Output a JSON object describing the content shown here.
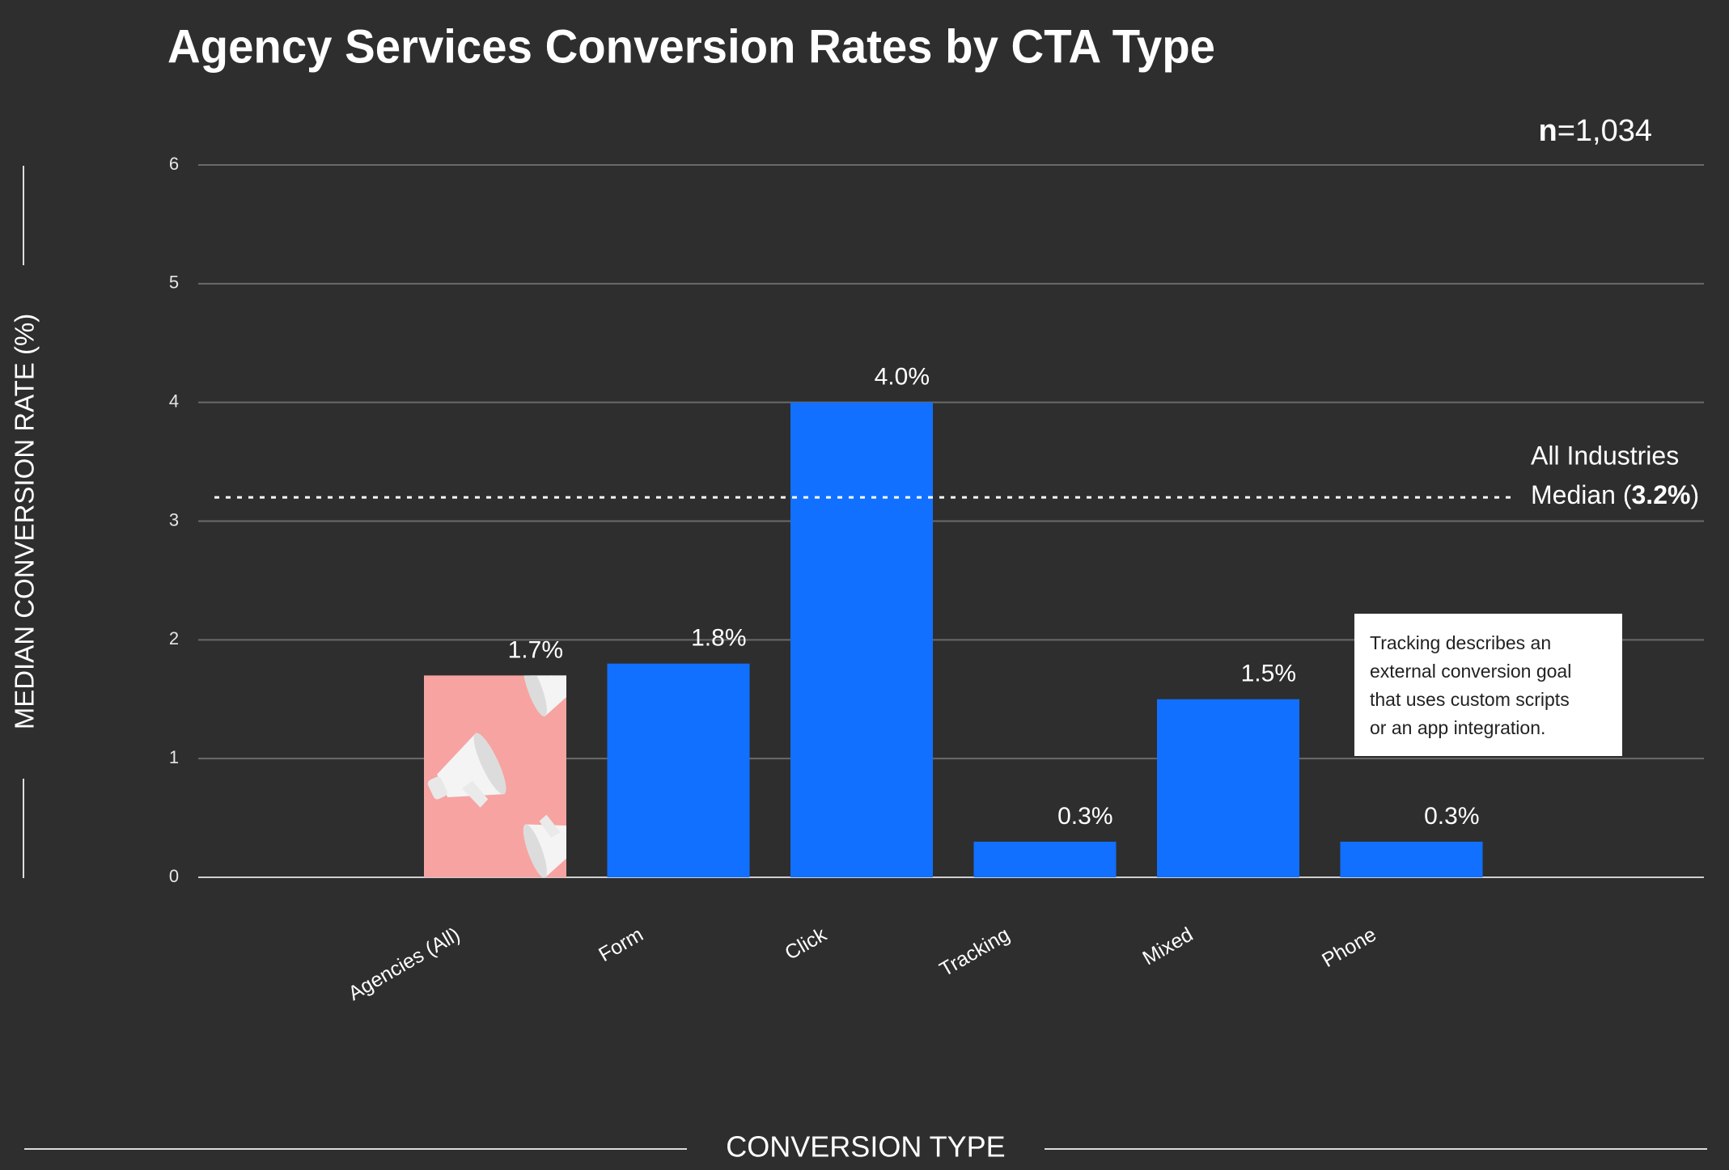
{
  "chart_data": {
    "type": "bar",
    "title": "Agency Services Conversion Rates by CTA Type",
    "x_label": "CONVERSION TYPE",
    "y_label": "MEDIAN CONVERSION RATE (%)",
    "n_label": "n",
    "n_value": "=1,034",
    "categories": [
      "Agencies (All)",
      "Form",
      "Click",
      "Tracking",
      "Mixed",
      "Phone"
    ],
    "values": [
      1.7,
      1.8,
      4.0,
      0.3,
      1.5,
      0.3
    ],
    "value_labels": [
      "1.7%",
      "1.8%",
      "4.0%",
      "0.3%",
      "1.5%",
      "0.3%"
    ],
    "colors": [
      "#f7a3a1",
      "#1170ff",
      "#1170ff",
      "#1170ff",
      "#1170ff",
      "#1170ff"
    ],
    "ylim": [
      0,
      6
    ],
    "yticks": [
      0,
      1,
      2,
      3,
      4,
      5,
      6
    ],
    "grid": true,
    "reference": {
      "value": 3.2,
      "value_label": "3.2%",
      "title": "All Industries",
      "prefix": "Median (",
      "suffix": ")"
    },
    "note": [
      "Tracking describes an",
      "external conversion goal",
      "that uses custom scripts",
      "or an app integration."
    ]
  }
}
